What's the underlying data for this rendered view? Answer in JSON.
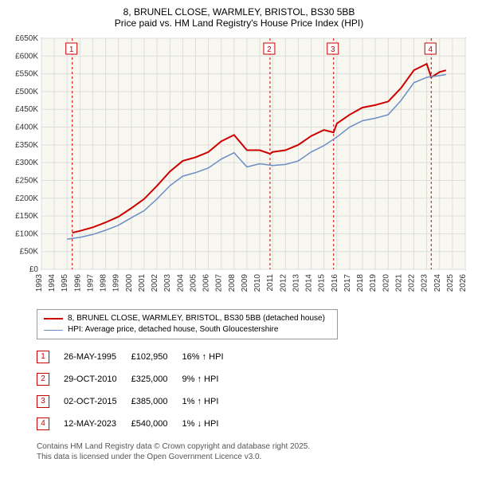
{
  "header": {
    "address": "8, BRUNEL CLOSE, WARMLEY, BRISTOL, BS30 5BB",
    "subtitle": "Price paid vs. HM Land Registry's House Price Index (HPI)"
  },
  "chart": {
    "type": "line",
    "background_color": "#f8f7f0",
    "grid_color": "#dddddd",
    "axis_color": "#333333",
    "tick_font_size": 10,
    "x": {
      "min": 1993,
      "max": 2026,
      "step": 1
    },
    "y": {
      "min": 0,
      "max": 650000,
      "step": 50000,
      "prefix": "£",
      "suffix_k": true
    },
    "series": [
      {
        "key": "paid",
        "label": "8, BRUNEL CLOSE, WARMLEY, BRISTOL, BS30 5BB (detached house)",
        "color": "#cc0000",
        "width": 2,
        "data": [
          [
            1995.4,
            102950
          ],
          [
            1996,
            108000
          ],
          [
            1997,
            118000
          ],
          [
            1998,
            132000
          ],
          [
            1999,
            148000
          ],
          [
            2000,
            172000
          ],
          [
            2001,
            198000
          ],
          [
            2002,
            235000
          ],
          [
            2003,
            275000
          ],
          [
            2004,
            305000
          ],
          [
            2005,
            315000
          ],
          [
            2006,
            330000
          ],
          [
            2007,
            360000
          ],
          [
            2008,
            378000
          ],
          [
            2009,
            335000
          ],
          [
            2010,
            335000
          ],
          [
            2010.8,
            325000
          ],
          [
            2011,
            330000
          ],
          [
            2012,
            335000
          ],
          [
            2013,
            350000
          ],
          [
            2014,
            375000
          ],
          [
            2015,
            392000
          ],
          [
            2015.75,
            385000
          ],
          [
            2016,
            410000
          ],
          [
            2017,
            435000
          ],
          [
            2018,
            455000
          ],
          [
            2019,
            462000
          ],
          [
            2020,
            472000
          ],
          [
            2021,
            510000
          ],
          [
            2022,
            560000
          ],
          [
            2023,
            578000
          ],
          [
            2023.35,
            540000
          ],
          [
            2024,
            555000
          ],
          [
            2024.5,
            560000
          ]
        ]
      },
      {
        "key": "hpi",
        "label": "HPI: Average price, detached house, South Gloucestershire",
        "color": "#6a8fc5",
        "width": 1.5,
        "data": [
          [
            1995,
            85000
          ],
          [
            1996,
            90000
          ],
          [
            1997,
            98000
          ],
          [
            1998,
            110000
          ],
          [
            1999,
            124000
          ],
          [
            2000,
            145000
          ],
          [
            2001,
            165000
          ],
          [
            2002,
            198000
          ],
          [
            2003,
            235000
          ],
          [
            2004,
            262000
          ],
          [
            2005,
            272000
          ],
          [
            2006,
            285000
          ],
          [
            2007,
            310000
          ],
          [
            2008,
            328000
          ],
          [
            2009,
            288000
          ],
          [
            2010,
            297000
          ],
          [
            2011,
            292000
          ],
          [
            2012,
            295000
          ],
          [
            2013,
            305000
          ],
          [
            2014,
            330000
          ],
          [
            2015,
            348000
          ],
          [
            2016,
            372000
          ],
          [
            2017,
            400000
          ],
          [
            2018,
            418000
          ],
          [
            2019,
            425000
          ],
          [
            2020,
            435000
          ],
          [
            2021,
            475000
          ],
          [
            2022,
            525000
          ],
          [
            2023,
            540000
          ],
          [
            2024,
            545000
          ],
          [
            2024.5,
            548000
          ]
        ]
      }
    ],
    "markers": [
      {
        "n": "1",
        "x": 1995.4,
        "y": 102950
      },
      {
        "n": "2",
        "x": 2010.8,
        "y": 325000
      },
      {
        "n": "3",
        "x": 2015.75,
        "y": 385000
      },
      {
        "n": "4",
        "x": 2023.35,
        "y": 540000
      }
    ],
    "marker_style": {
      "border_color": "#cc0000",
      "text_color": "#cc0000",
      "guide_color": "#cc0000",
      "guide_dash": "3,3"
    }
  },
  "sales": [
    {
      "n": "1",
      "date": "26-MAY-1995",
      "price": "£102,950",
      "delta": "16% ↑ HPI"
    },
    {
      "n": "2",
      "date": "29-OCT-2010",
      "price": "£325,000",
      "delta": "9% ↑ HPI"
    },
    {
      "n": "3",
      "date": "02-OCT-2015",
      "price": "£385,000",
      "delta": "1% ↑ HPI"
    },
    {
      "n": "4",
      "date": "12-MAY-2023",
      "price": "£540,000",
      "delta": "1% ↓ HPI"
    }
  ],
  "footer": {
    "line1": "Contains HM Land Registry data © Crown copyright and database right 2025.",
    "line2": "This data is licensed under the Open Government Licence v3.0."
  }
}
